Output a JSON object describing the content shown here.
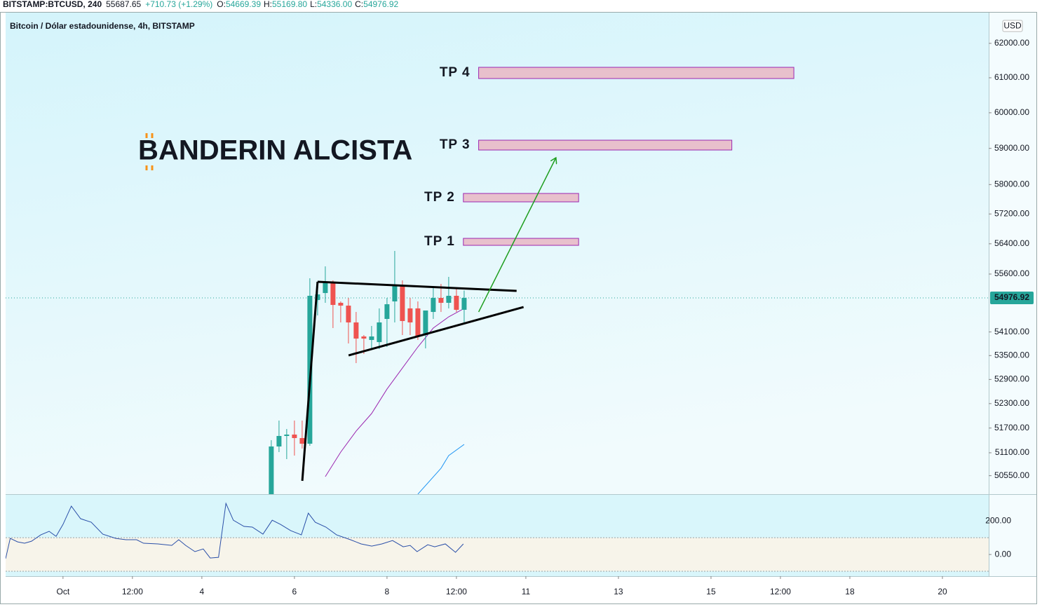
{
  "header": {
    "symbol": "BITSTAMP:BTCUSD, 240",
    "price": "55687.65",
    "change": "+710.73 (+1.29%)",
    "ohlc": [
      {
        "label": "O:",
        "value": "54669.39"
      },
      {
        "label": "H:",
        "value": "55169.80"
      },
      {
        "label": "L:",
        "value": "54336.00"
      },
      {
        "label": "C:",
        "value": "54976.92"
      }
    ]
  },
  "chart_data": [
    {
      "type": "candlestick",
      "title": "Bitcoin / Dólar estadounidense, 4h, BITSTAMP",
      "currency": "USD",
      "log_scale": true,
      "x": [
        5.5,
        5.667,
        5.833,
        6,
        6.167,
        6.333,
        6.5,
        6.667,
        6.833,
        7,
        7.167,
        7.333,
        7.5,
        7.667,
        7.833,
        8,
        8.167,
        8.333,
        8.5,
        8.667,
        8.833,
        9,
        9.167,
        9.333,
        9.5,
        9.667
      ],
      "open": [
        50111,
        51252,
        51507,
        51541,
        51456,
        51319,
        54922,
        55104,
        55360,
        54850,
        54777,
        54344,
        53985,
        53896,
        53842,
        54434,
        54886,
        55306,
        54705,
        54705,
        54021,
        54614,
        54977,
        54850,
        55032,
        54669.39
      ],
      "high": [
        51405,
        51883,
        51677,
        51883,
        51883,
        55489,
        55360,
        55802,
        55434,
        54886,
        54977,
        54614,
        54021,
        54254,
        54705,
        54977,
        56210,
        55434,
        54977,
        54886,
        54651,
        55251,
        55342,
        55526,
        55251,
        55169.8
      ],
      "low": [
        50111,
        51116,
        50947,
        51032,
        51201,
        51268,
        54524,
        54850,
        54200,
        54344,
        53807,
        53310,
        53540,
        53682,
        53664,
        53718,
        54344,
        54021,
        54021,
        53896,
        53682,
        54434,
        54614,
        54705,
        54614,
        54336
      ],
      "close": [
        51252,
        51507,
        51541,
        51456,
        51319,
        55032,
        55068,
        55397,
        54795,
        54777,
        54344,
        53931,
        53931,
        53985,
        54344,
        54813,
        55306,
        54380,
        54344,
        53985,
        54651,
        54977,
        54850,
        55032,
        54669,
        54976.92
      ],
      "up_color": "#26a69a",
      "down_color": "#ef5350",
      "xlim": [
        -0.24,
        21
      ],
      "ylim": [
        50111,
        62906
      ],
      "xticks": [
        {
          "value": 1,
          "label": "Oct"
        },
        {
          "value": 2.5,
          "label": "12:00"
        },
        4,
        6,
        8,
        {
          "value": 9.5,
          "label": "12:00"
        },
        11,
        13,
        15,
        {
          "value": 16.5,
          "label": "12:00"
        },
        18,
        20
      ],
      "yticks": [
        {
          "value": 62000,
          "label": "62000.00"
        },
        {
          "value": 61000,
          "label": "61000.00"
        },
        {
          "value": 60000,
          "label": "60000.00"
        },
        {
          "value": 59000,
          "label": "59000.00"
        },
        {
          "value": 58000,
          "label": "58000.00"
        },
        {
          "value": 57200,
          "label": "57200.00"
        },
        {
          "value": 56400,
          "label": "56400.00"
        },
        {
          "value": 55600,
          "label": "55600.00"
        },
        {
          "value": 54100,
          "label": "54100.00"
        },
        {
          "value": 53500,
          "label": "53500.00"
        },
        {
          "value": 52900,
          "label": "52900.00"
        },
        {
          "value": 52300,
          "label": "52300.00"
        },
        {
          "value": 51700,
          "label": "51700.00"
        },
        {
          "value": 51100,
          "label": "51100.00"
        },
        {
          "value": 50550,
          "label": "50550.00"
        }
      ],
      "last_price": 54976.92,
      "last_price_color": "#26a69a",
      "lines": [
        {
          "color": "#9c27b0",
          "x": [
            6.667,
            7,
            7.333,
            7.667,
            8,
            8.333,
            8.667,
            9,
            9.333,
            9.667
          ],
          "values": [
            50527,
            51116,
            51626,
            52055,
            52661,
            53187,
            53718,
            54200,
            54488,
            54705
          ]
        },
        {
          "color": "#2196f3",
          "x": [
            8.667,
            9.167,
            9.333,
            9.667
          ],
          "values": [
            50111,
            50728,
            51032,
            51302
          ]
        }
      ],
      "zones": [
        {
          "label": "TP 4",
          "x": [
            9.98,
            16.79
          ],
          "y": [
            60978,
            61302
          ],
          "color": "#e8c0cc",
          "border": "#9c27b0"
        },
        {
          "label": "TP 3",
          "x": [
            9.98,
            15.45
          ],
          "y": [
            58954,
            59228
          ],
          "color": "#e8c0cc",
          "border": "#9c27b0"
        },
        {
          "label": "TP 2",
          "x": [
            9.65,
            12.14
          ],
          "y": [
            57528,
            57757
          ],
          "color": "#e8c0cc",
          "border": "#9c27b0"
        },
        {
          "label": "TP 1",
          "x": [
            9.65,
            12.14
          ],
          "y": [
            56359,
            56545
          ],
          "color": "#e8c0cc",
          "border": "#9c27b0"
        }
      ],
      "drawings": [
        {
          "color": "#000000",
          "x": [
            6.17,
            6.5
          ],
          "y": [
            50427,
            55397
          ]
        },
        {
          "color": "#000000",
          "x": [
            6.5,
            10.8
          ],
          "y": [
            55397,
            55159
          ]
        },
        {
          "color": "#000000",
          "x": [
            7.17,
            10.95
          ],
          "y": [
            53505,
            54740
          ]
        }
      ],
      "arrow": {
        "color": "#1e9e1e",
        "x": [
          9.98,
          11.65
        ],
        "y": [
          54614,
          58740
        ]
      },
      "banner": {
        "logo": "B",
        "text": "ANDERIN ALCISTA",
        "logo_color": "#f7931a"
      }
    },
    {
      "type": "line",
      "color": "#2a4fa8",
      "x": [
        -0.24,
        -0.14,
        0.02,
        0.17,
        0.32,
        0.52,
        0.7,
        0.85,
        1.0,
        1.18,
        1.38,
        1.61,
        1.86,
        2.14,
        2.36,
        2.59,
        2.74,
        3.05,
        3.35,
        3.5,
        3.65,
        3.85,
        4.03,
        4.18,
        4.36,
        4.52,
        4.68,
        4.91,
        5.09,
        5.32,
        5.52,
        5.7,
        5.92,
        6.15,
        6.3,
        6.45,
        6.68,
        6.91,
        7.21,
        7.44,
        7.67,
        7.89,
        8.12,
        8.35,
        8.5,
        8.65,
        8.88,
        9.03,
        9.26,
        9.48,
        9.65
      ],
      "values": [
        -25,
        96,
        75,
        67,
        79,
        117,
        138,
        108,
        179,
        288,
        213,
        192,
        121,
        96,
        88,
        88,
        67,
        63,
        54,
        88,
        54,
        17,
        33,
        -21,
        -17,
        304,
        204,
        167,
        163,
        121,
        204,
        179,
        142,
        117,
        246,
        192,
        163,
        117,
        88,
        63,
        50,
        63,
        83,
        46,
        54,
        17,
        58,
        46,
        63,
        13,
        63
      ],
      "xlim": [
        -0.24,
        21
      ],
      "ylim": [
        -129,
        355
      ],
      "yticks": [
        {
          "value": 0,
          "label": "0.00"
        },
        {
          "value": 200,
          "label": "200.00"
        }
      ],
      "bands": [
        100,
        -100
      ]
    }
  ]
}
